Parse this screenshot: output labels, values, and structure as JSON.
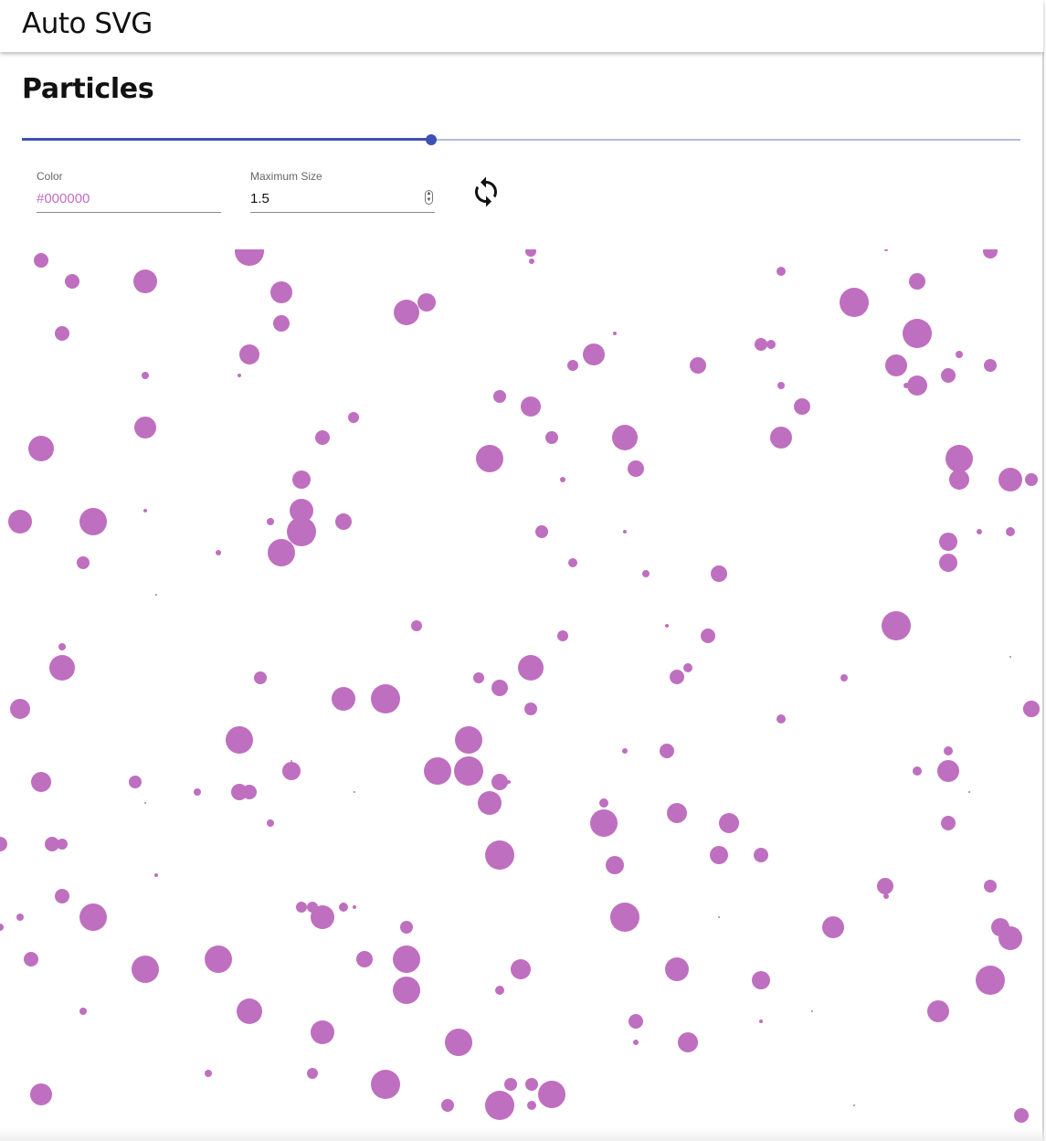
{
  "appbar": {
    "title": "Auto SVG"
  },
  "page": {
    "title": "Particles"
  },
  "slider": {
    "value_fraction": 0.41
  },
  "controls": {
    "color": {
      "label": "Color",
      "value": "#000000"
    },
    "max_size": {
      "label": "Maximum Size",
      "value": "1.5"
    },
    "refresh": {
      "icon": "refresh-icon"
    }
  },
  "particles": {
    "color": "#bf6fbf"
  },
  "colors": {
    "accent": "#3f51b5",
    "particle": "#bf6fbf"
  }
}
